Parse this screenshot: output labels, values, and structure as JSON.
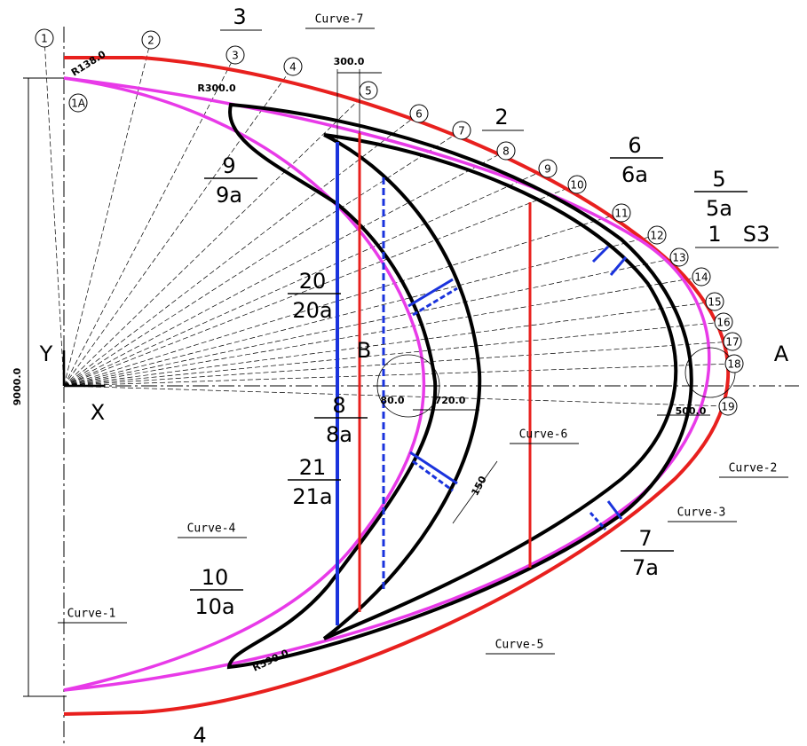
{
  "markers": [
    "1",
    "2",
    "3",
    "4",
    "5",
    "6",
    "7",
    "8",
    "9",
    "10",
    "11",
    "12",
    "13",
    "14",
    "15",
    "16",
    "17",
    "18",
    "19",
    "1A"
  ],
  "regions": [
    "3",
    "2",
    "1",
    "S3",
    "4"
  ],
  "fractions": [
    [
      "9",
      "9a"
    ],
    [
      "20",
      "20a"
    ],
    [
      "8",
      "8a"
    ],
    [
      "21",
      "21a"
    ],
    [
      "10",
      "10a"
    ],
    [
      "6",
      "6a"
    ],
    [
      "5",
      "5a"
    ],
    [
      "7",
      "7a"
    ]
  ],
  "curves": [
    "Curve-1",
    "Curve-2",
    "Curve-3",
    "Curve-4",
    "Curve-5",
    "Curve-6",
    "Curve-7"
  ],
  "dimensions": [
    "R138.0",
    "R300.0",
    "300.0",
    "80.0",
    "720.0",
    "500.0",
    "150",
    "R590.0",
    "9000.0"
  ],
  "points": [
    "A",
    "B"
  ],
  "axes": {
    "x": "X",
    "y": "Y"
  }
}
